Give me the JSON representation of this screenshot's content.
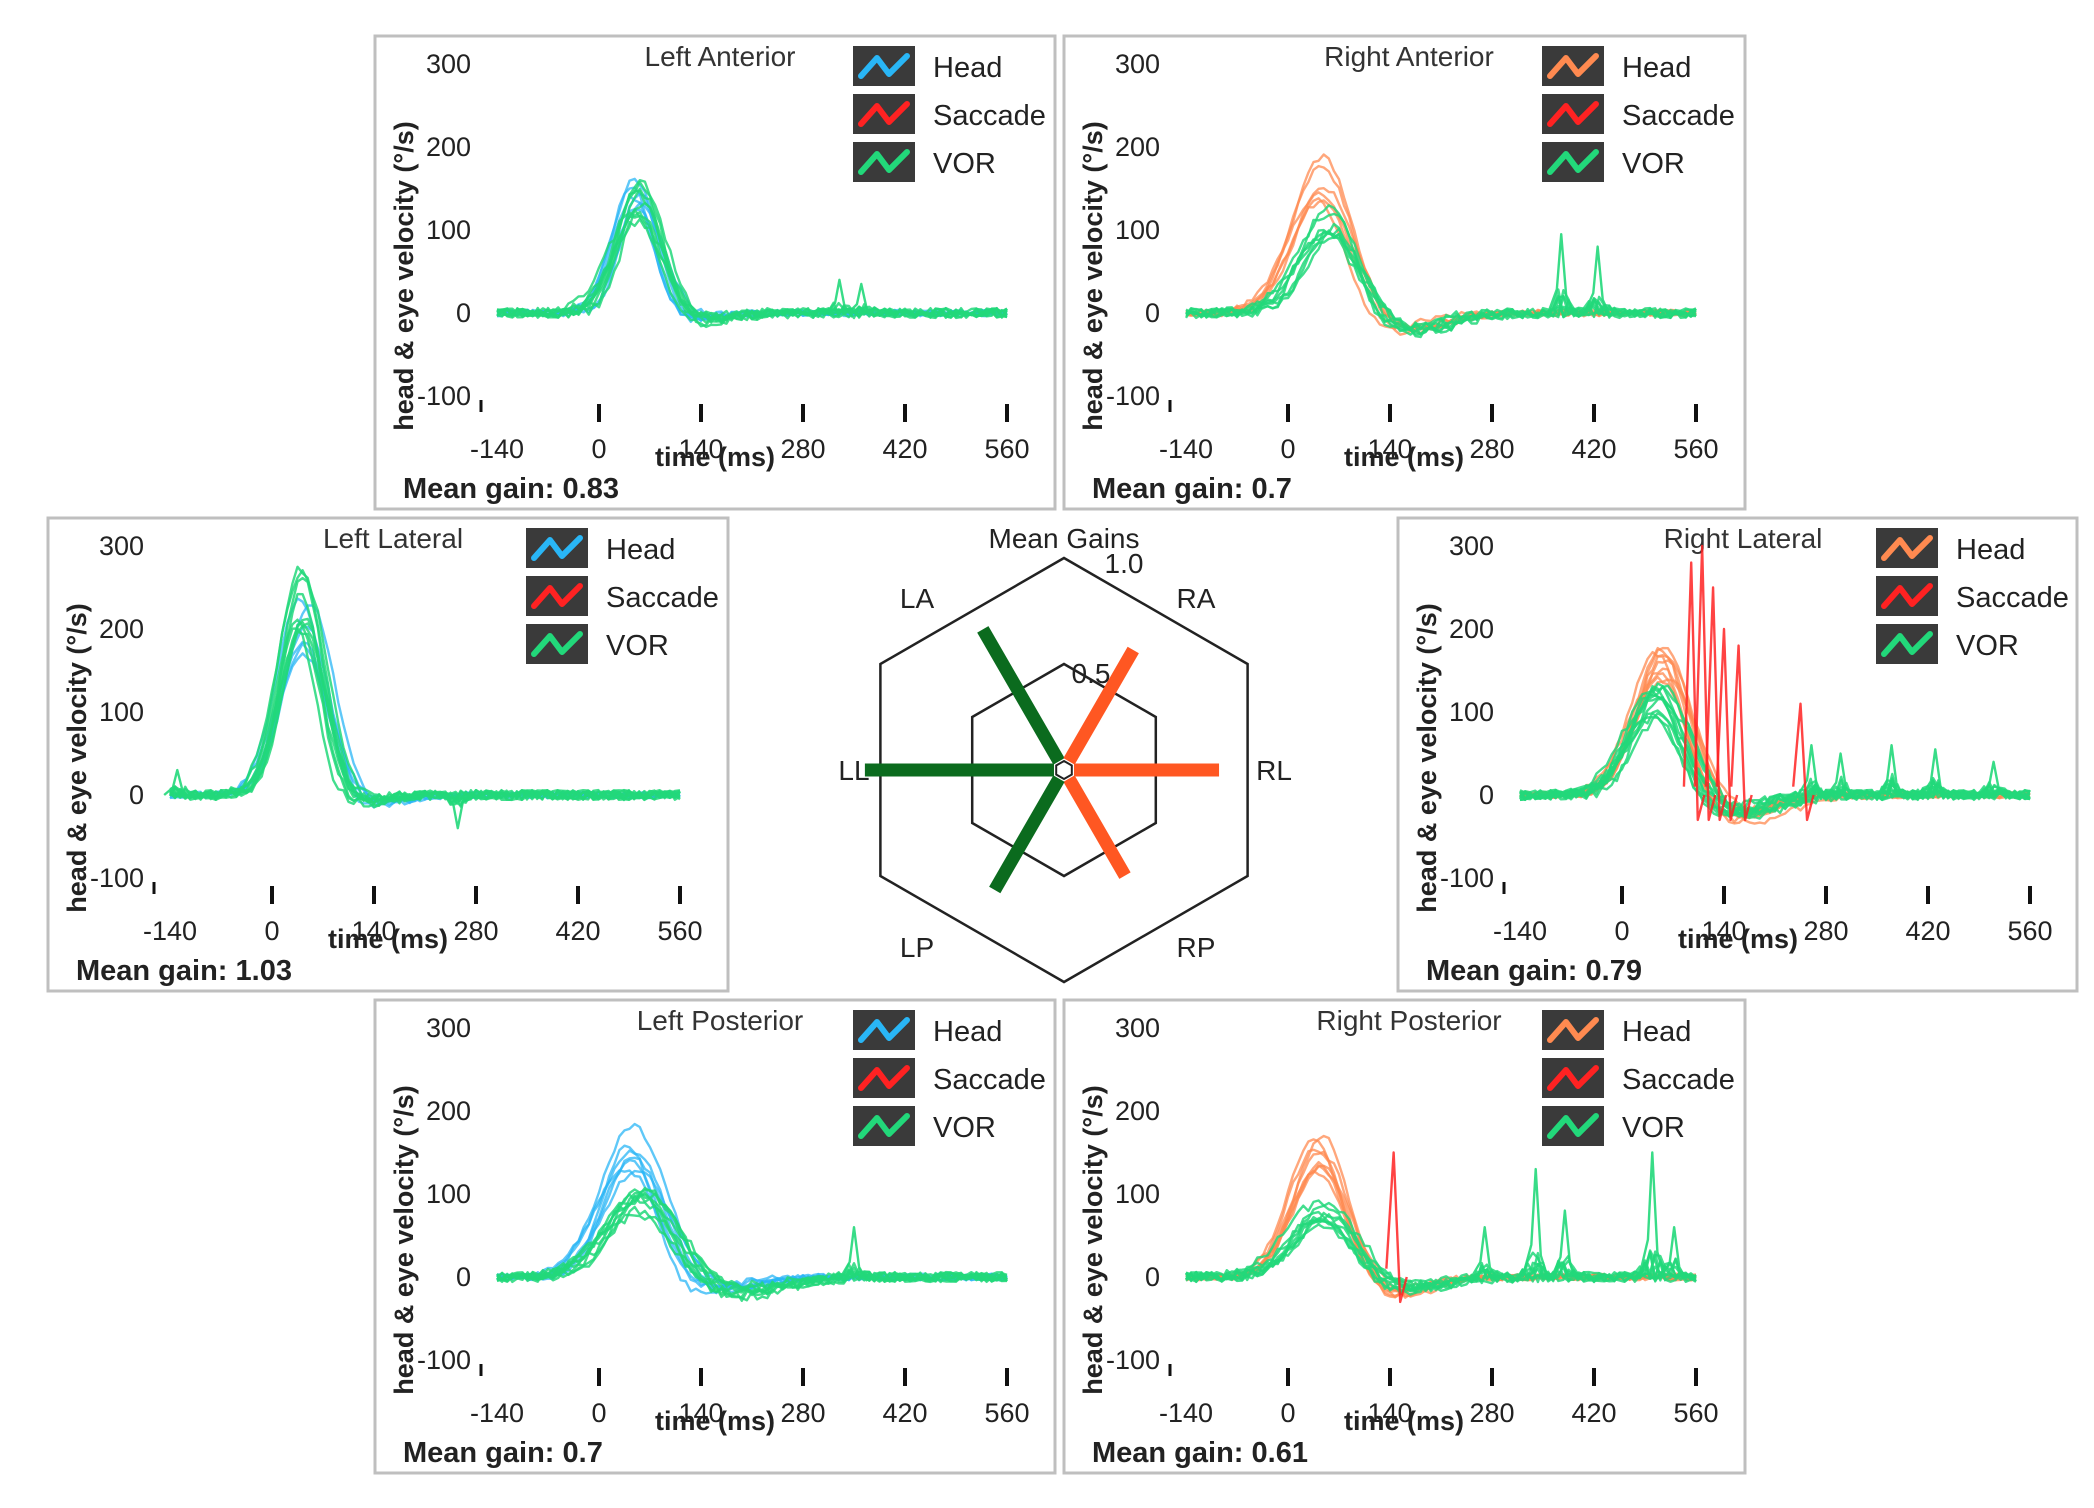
{
  "chart_data": [
    {
      "type": "line",
      "title": "Left Anterior",
      "xlabel": "time (ms)",
      "ylabel": "head & eye velocity (°/s)",
      "x_ticks": [
        "-140",
        "0",
        "140",
        "280",
        "420",
        "560"
      ],
      "y_ticks": [
        "300",
        "200",
        "100",
        "0",
        "-100"
      ],
      "xlim": [
        -140,
        560
      ],
      "ylim": [
        -100,
        300
      ],
      "legend": [
        "Head",
        "Saccade",
        "VOR"
      ],
      "head_color": "#29b6f6",
      "mean_gain_text": "Mean gain: 0.83",
      "series": [
        {
          "name": "Head",
          "peak": 155,
          "peak_time": 50,
          "width": 30,
          "undershoot": -8,
          "traces": 6
        },
        {
          "name": "VOR",
          "peak": 140,
          "peak_time": 55,
          "width": 32,
          "undershoot": -10,
          "traces": 9,
          "spikes": [
            [
              330,
              40
            ],
            [
              360,
              35
            ]
          ]
        },
        {
          "name": "Saccade",
          "spikes": []
        }
      ]
    },
    {
      "type": "line",
      "title": "Right Anterior",
      "xlabel": "time (ms)",
      "ylabel": "head & eye velocity (°/s)",
      "x_ticks": [
        "-140",
        "0",
        "140",
        "280",
        "420",
        "560"
      ],
      "y_ticks": [
        "300",
        "200",
        "100",
        "0",
        "-100"
      ],
      "xlim": [
        -140,
        560
      ],
      "ylim": [
        -100,
        300
      ],
      "legend": [
        "Head",
        "Saccade",
        "VOR"
      ],
      "head_color": "#ff8a50",
      "mean_gain_text": "Mean gain: 0.7",
      "series": [
        {
          "name": "Head",
          "peak": 170,
          "peak_time": 45,
          "width": 40,
          "undershoot": -20,
          "traces": 6
        },
        {
          "name": "VOR",
          "peak": 115,
          "peak_time": 55,
          "width": 40,
          "undershoot": -20,
          "traces": 8,
          "spikes": [
            [
              375,
              95
            ],
            [
              425,
              80
            ]
          ]
        },
        {
          "name": "Saccade",
          "spikes": []
        }
      ]
    },
    {
      "type": "line",
      "title": "Left Lateral",
      "xlabel": "time (ms)",
      "ylabel": "head & eye velocity (°/s)",
      "x_ticks": [
        "-140",
        "0",
        "140",
        "280",
        "420",
        "560"
      ],
      "y_ticks": [
        "300",
        "200",
        "100",
        "0",
        "-100"
      ],
      "xlim": [
        -140,
        560
      ],
      "ylim": [
        -100,
        300
      ],
      "legend": [
        "Head",
        "Saccade",
        "VOR"
      ],
      "head_color": "#29b6f6",
      "mean_gain_text": "Mean gain: 1.03",
      "series": [
        {
          "name": "Head",
          "peak": 210,
          "peak_time": 45,
          "width": 32,
          "undershoot": -12,
          "traces": 6
        },
        {
          "name": "VOR",
          "peak": 240,
          "peak_time": 40,
          "width": 30,
          "undershoot": -10,
          "traces": 10,
          "spikes": [
            [
              -130,
              30
            ],
            [
              255,
              -40
            ]
          ]
        },
        {
          "name": "Saccade",
          "spikes": []
        }
      ]
    },
    {
      "type": "line",
      "title": "Right Lateral",
      "xlabel": "time (ms)",
      "ylabel": "head & eye velocity (°/s)",
      "x_ticks": [
        "-140",
        "0",
        "140",
        "280",
        "420",
        "560"
      ],
      "y_ticks": [
        "300",
        "200",
        "100",
        "0",
        "-100"
      ],
      "xlim": [
        -140,
        560
      ],
      "ylim": [
        -100,
        300
      ],
      "legend": [
        "Head",
        "Saccade",
        "VOR"
      ],
      "head_color": "#ff8a50",
      "mean_gain_text": "Mean gain: 0.79",
      "series": [
        {
          "name": "Head",
          "peak": 170,
          "peak_time": 55,
          "width": 40,
          "undershoot": -25,
          "traces": 9
        },
        {
          "name": "VOR",
          "peak": 120,
          "peak_time": 50,
          "width": 38,
          "undershoot": -20,
          "traces": 12,
          "spikes": [
            [
              260,
              60
            ],
            [
              300,
              50
            ],
            [
              370,
              60
            ],
            [
              430,
              55
            ],
            [
              510,
              40
            ]
          ]
        },
        {
          "name": "Saccade",
          "spikes": [
            [
              95,
              280
            ],
            [
              110,
              300
            ],
            [
              125,
              250
            ],
            [
              140,
              200
            ],
            [
              160,
              180
            ],
            [
              245,
              110
            ]
          ]
        }
      ]
    },
    {
      "type": "line",
      "title": "Left Posterior",
      "xlabel": "time (ms)",
      "ylabel": "head & eye velocity (°/s)",
      "x_ticks": [
        "-140",
        "0",
        "140",
        "280",
        "420",
        "560"
      ],
      "y_ticks": [
        "300",
        "200",
        "100",
        "0",
        "-100"
      ],
      "xlim": [
        -140,
        560
      ],
      "ylim": [
        -100,
        300
      ],
      "legend": [
        "Head",
        "Saccade",
        "VOR"
      ],
      "head_color": "#29b6f6",
      "mean_gain_text": "Mean gain: 0.7",
      "series": [
        {
          "name": "Head",
          "peak": 160,
          "peak_time": 45,
          "width": 40,
          "undershoot": -20,
          "traces": 7
        },
        {
          "name": "VOR",
          "peak": 95,
          "peak_time": 60,
          "width": 45,
          "undershoot": -20,
          "traces": 9,
          "spikes": [
            [
              350,
              60
            ]
          ]
        },
        {
          "name": "Saccade",
          "spikes": []
        }
      ]
    },
    {
      "type": "line",
      "title": "Right Posterior",
      "xlabel": "time (ms)",
      "ylabel": "head & eye velocity (°/s)",
      "x_ticks": [
        "-140",
        "0",
        "140",
        "280",
        "420",
        "560"
      ],
      "y_ticks": [
        "300",
        "200",
        "100",
        "0",
        "-100"
      ],
      "xlim": [
        -140,
        560
      ],
      "ylim": [
        -100,
        300
      ],
      "legend": [
        "Head",
        "Saccade",
        "VOR"
      ],
      "head_color": "#ff8a50",
      "mean_gain_text": "Mean gain: 0.61",
      "series": [
        {
          "name": "Head",
          "peak": 155,
          "peak_time": 40,
          "width": 38,
          "undershoot": -20,
          "traces": 8
        },
        {
          "name": "VOR",
          "peak": 80,
          "peak_time": 50,
          "width": 45,
          "undershoot": -15,
          "traces": 9,
          "spikes": [
            [
              270,
              60
            ],
            [
              340,
              130
            ],
            [
              380,
              80
            ],
            [
              500,
              150
            ],
            [
              530,
              60
            ]
          ]
        },
        {
          "name": "Saccade",
          "spikes": [
            [
              145,
              150
            ]
          ]
        }
      ]
    },
    {
      "type": "radar",
      "title": "Mean Gains",
      "axes": [
        "LA",
        "RA",
        "RL",
        "RP",
        "LP",
        "LL"
      ],
      "ring_labels": [
        "1.0",
        "0.5"
      ],
      "rings": [
        0.5,
        1.0
      ],
      "values": {
        "LA": 0.83,
        "RA": 0.7,
        "RL": 0.79,
        "RP": 0.61,
        "LP": 0.7,
        "LL": 1.03
      },
      "colors": {
        "left": "#0b6b1e",
        "right": "#ff5722"
      }
    }
  ],
  "colors": {
    "saccade": "#ff2222",
    "vor": "#22d87a",
    "legend_bg": "#3a3a3a",
    "frame": "#bfbfbf"
  },
  "legend_icons": {
    "head": "head-wave-icon",
    "saccade": "saccade-wave-icon",
    "vor": "vor-wave-icon"
  }
}
